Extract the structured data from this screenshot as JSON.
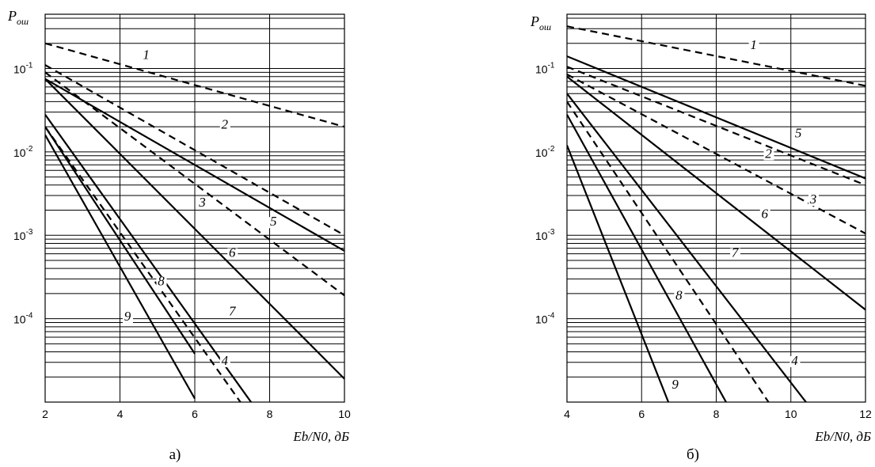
{
  "chart_data": [
    {
      "type": "line",
      "caption": "а)",
      "ylabel": "P",
      "ylabel_sub": "ош",
      "xlabel": "Eb/N0, дБ",
      "xlim": [
        2,
        10
      ],
      "ylim_log10": [
        -5,
        -0.35
      ],
      "x_ticks": [
        "2",
        "4",
        "6",
        "8",
        "10"
      ],
      "y_ticks": [
        {
          "value": 0.1,
          "base": "10",
          "exp": "-1"
        },
        {
          "value": 0.01,
          "base": "10",
          "exp": "-2"
        },
        {
          "value": 0.001,
          "base": "10",
          "exp": "-3"
        },
        {
          "value": 0.0001,
          "base": "10",
          "exp": "-4"
        }
      ],
      "grid": true,
      "series": [
        {
          "name": "1",
          "dashed": true,
          "points": [
            [
              2,
              0.2
            ],
            [
              10,
              0.02
            ]
          ],
          "label_x": 4.7,
          "label_y": 0.13
        },
        {
          "name": "2",
          "dashed": true,
          "points": [
            [
              2,
              0.11
            ],
            [
              10,
              0.001
            ]
          ],
          "label_x": 6.8,
          "label_y": 0.019
        },
        {
          "name": "3",
          "dashed": true,
          "points": [
            [
              2,
              0.09
            ],
            [
              10,
              0.00019
            ]
          ],
          "label_x": 6.2,
          "label_y": 0.0022
        },
        {
          "name": "4",
          "dashed": true,
          "points": [
            [
              2,
              0.02
            ],
            [
              8.8,
              1e-06
            ]
          ],
          "label_x": 6.8,
          "label_y": 2.8e-05
        },
        {
          "name": "5",
          "dashed": false,
          "points": [
            [
              2,
              0.075
            ],
            [
              10,
              0.00065
            ]
          ],
          "label_x": 8.1,
          "label_y": 0.0013
        },
        {
          "name": "6",
          "dashed": false,
          "points": [
            [
              2,
              0.075
            ],
            [
              10,
              1.9e-05
            ]
          ],
          "label_x": 7.0,
          "label_y": 0.00055
        },
        {
          "name": "7",
          "dashed": false,
          "points": [
            [
              2,
              0.028
            ],
            [
              9.1,
              1e-06
            ]
          ],
          "label_x": 7.0,
          "label_y": 0.00011
        },
        {
          "name": "8",
          "dashed": false,
          "points": [
            [
              2,
              0.02
            ],
            [
              6,
              3.8e-05
            ]
          ],
          "label_x": 5.1,
          "label_y": 0.00025
        },
        {
          "name": "9",
          "dashed": false,
          "points": [
            [
              2,
              0.016
            ],
            [
              6,
              1.1e-05
            ]
          ],
          "label_x": 4.2,
          "label_y": 9.5e-05
        }
      ]
    },
    {
      "type": "line",
      "caption": "б)",
      "ylabel": "P",
      "ylabel_sub": "ош",
      "xlabel": "Eb/N0, дБ",
      "xlim": [
        4,
        12
      ],
      "ylim_log10": [
        -5,
        -0.35
      ],
      "x_ticks": [
        "4",
        "6",
        "8",
        "10",
        "12"
      ],
      "y_ticks": [
        {
          "value": 0.1,
          "base": "10",
          "exp": "-1"
        },
        {
          "value": 0.01,
          "base": "10",
          "exp": "-2"
        },
        {
          "value": 0.001,
          "base": "10",
          "exp": "-3"
        },
        {
          "value": 0.0001,
          "base": "10",
          "exp": "-4"
        }
      ],
      "grid": true,
      "series": [
        {
          "name": "1",
          "dashed": true,
          "points": [
            [
              4,
              0.32
            ],
            [
              12,
              0.062
            ]
          ],
          "label_x": 9.0,
          "label_y": 0.17
        },
        {
          "name": "2",
          "dashed": true,
          "points": [
            [
              4,
              0.105
            ],
            [
              12,
              0.004
            ]
          ],
          "label_x": 9.4,
          "label_y": 0.0085
        },
        {
          "name": "3",
          "dashed": true,
          "points": [
            [
              4,
              0.085
            ],
            [
              12,
              0.00105
            ]
          ],
          "label_x": 10.6,
          "label_y": 0.0024
        },
        {
          "name": "4",
          "dashed": true,
          "points": [
            [
              4,
              0.04
            ],
            [
              10.9,
              1e-06
            ]
          ],
          "label_x": 10.1,
          "label_y": 2.8e-05
        },
        {
          "name": "5",
          "dashed": false,
          "points": [
            [
              4,
              0.14
            ],
            [
              12,
              0.0048
            ]
          ],
          "label_x": 10.2,
          "label_y": 0.015
        },
        {
          "name": "6",
          "dashed": false,
          "points": [
            [
              4,
              0.08
            ],
            [
              12,
              0.000128
            ]
          ],
          "label_x": 9.3,
          "label_y": 0.0016
        },
        {
          "name": "7",
          "dashed": false,
          "points": [
            [
              4,
              0.05
            ],
            [
              12,
              1.2e-06
            ]
          ],
          "label_x": 8.5,
          "label_y": 0.00055
        },
        {
          "name": "8",
          "dashed": false,
          "points": [
            [
              4,
              0.028
            ],
            [
              9.5,
              1e-06
            ]
          ],
          "label_x": 7.0,
          "label_y": 0.00017
        },
        {
          "name": "9",
          "dashed": false,
          "points": [
            [
              4,
              0.012
            ],
            [
              7.6,
              1e-06
            ]
          ],
          "label_x": 6.9,
          "label_y": 1.45e-05
        }
      ]
    }
  ]
}
